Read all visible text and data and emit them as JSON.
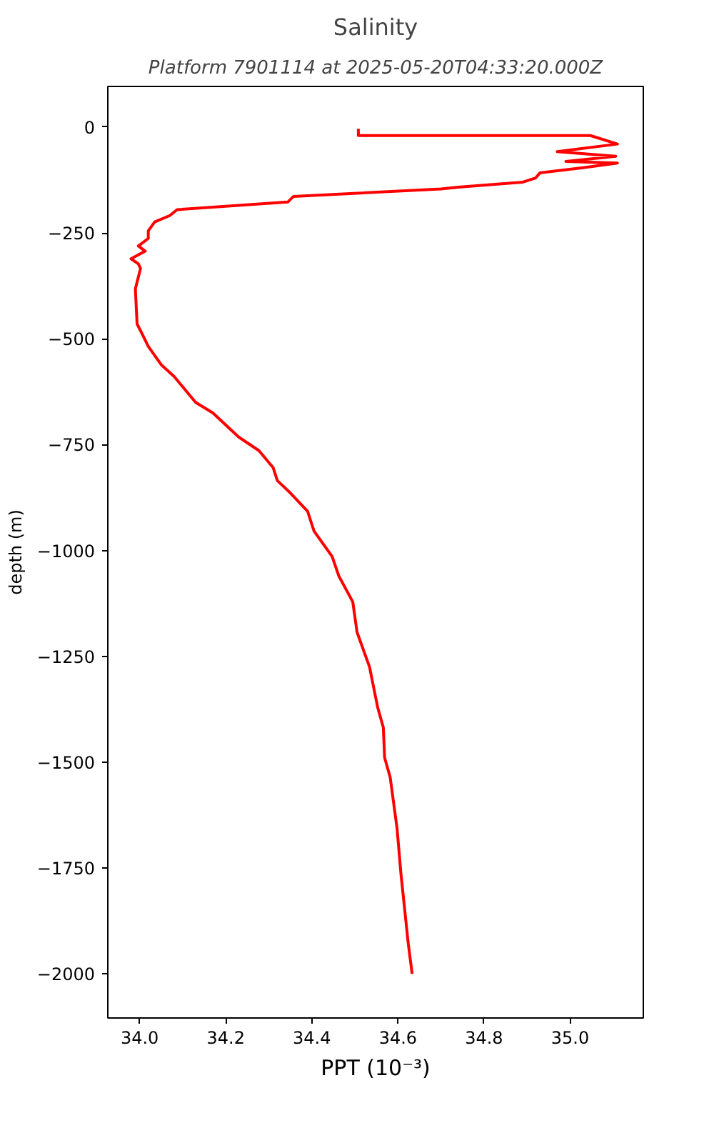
{
  "chart_data": {
    "type": "line",
    "title": "Salinity",
    "subtitle": "Platform 7901114 at 2025-05-20T04:33:20.000Z",
    "xlabel": "PPT (10⁻³)",
    "ylabel": "depth (m)",
    "series": [
      {
        "color": "#ff0000",
        "x": [
          34.508,
          34.508,
          35.047,
          35.11,
          34.97,
          35.106,
          34.99,
          35.11,
          35.03,
          34.93,
          34.92,
          34.89,
          34.74,
          34.7,
          34.357,
          34.344,
          34.087,
          34.07,
          34.035,
          34.02,
          34.02,
          33.997,
          34.013,
          33.98,
          33.997,
          34.002,
          33.99,
          33.994,
          34.006,
          34.02,
          34.05,
          34.08,
          34.13,
          34.17,
          34.23,
          34.277,
          34.31,
          34.318,
          34.32,
          34.35,
          34.39,
          34.405,
          34.447,
          34.463,
          34.495,
          34.505,
          34.534,
          34.553,
          34.566,
          34.569,
          34.582,
          34.598,
          34.607,
          34.624,
          34.633
        ],
        "values": [
          -4,
          -20,
          -20,
          -40,
          -58,
          -69,
          -81,
          -85,
          -96,
          -108,
          -120,
          -130,
          -142,
          -146,
          -164,
          -177,
          -195,
          -209,
          -224,
          -245,
          -263,
          -281,
          -293,
          -311,
          -323,
          -334,
          -382,
          -465,
          -489,
          -518,
          -561,
          -589,
          -650,
          -675,
          -732,
          -764,
          -804,
          -829,
          -835,
          -864,
          -907,
          -954,
          -1014,
          -1061,
          -1121,
          -1193,
          -1275,
          -1371,
          -1418,
          -1489,
          -1536,
          -1657,
          -1764,
          -1929,
          -2000
        ]
      }
    ],
    "xlim": [
      33.926,
      35.17
    ],
    "ylim": [
      -2104,
      96
    ],
    "xticks": [
      {
        "value": 34.0,
        "label": "34.0"
      },
      {
        "value": 34.2,
        "label": "34.2"
      },
      {
        "value": 34.4,
        "label": "34.4"
      },
      {
        "value": 34.6,
        "label": "34.6"
      },
      {
        "value": 34.8,
        "label": "34.8"
      },
      {
        "value": 35.0,
        "label": "35.0"
      }
    ],
    "yticks": [
      0,
      {
        "value": -250,
        "label": "−250"
      },
      {
        "value": -500,
        "label": "−500"
      },
      {
        "value": -750,
        "label": "−750"
      },
      {
        "value": -1000,
        "label": "−1000"
      },
      {
        "value": -1250,
        "label": "−1250"
      },
      {
        "value": -1500,
        "label": "−1500"
      },
      {
        "value": -1750,
        "label": "−1750"
      },
      {
        "value": -2000,
        "label": "−2000"
      }
    ],
    "grid": false,
    "marker": "none",
    "line_style": "solid"
  }
}
